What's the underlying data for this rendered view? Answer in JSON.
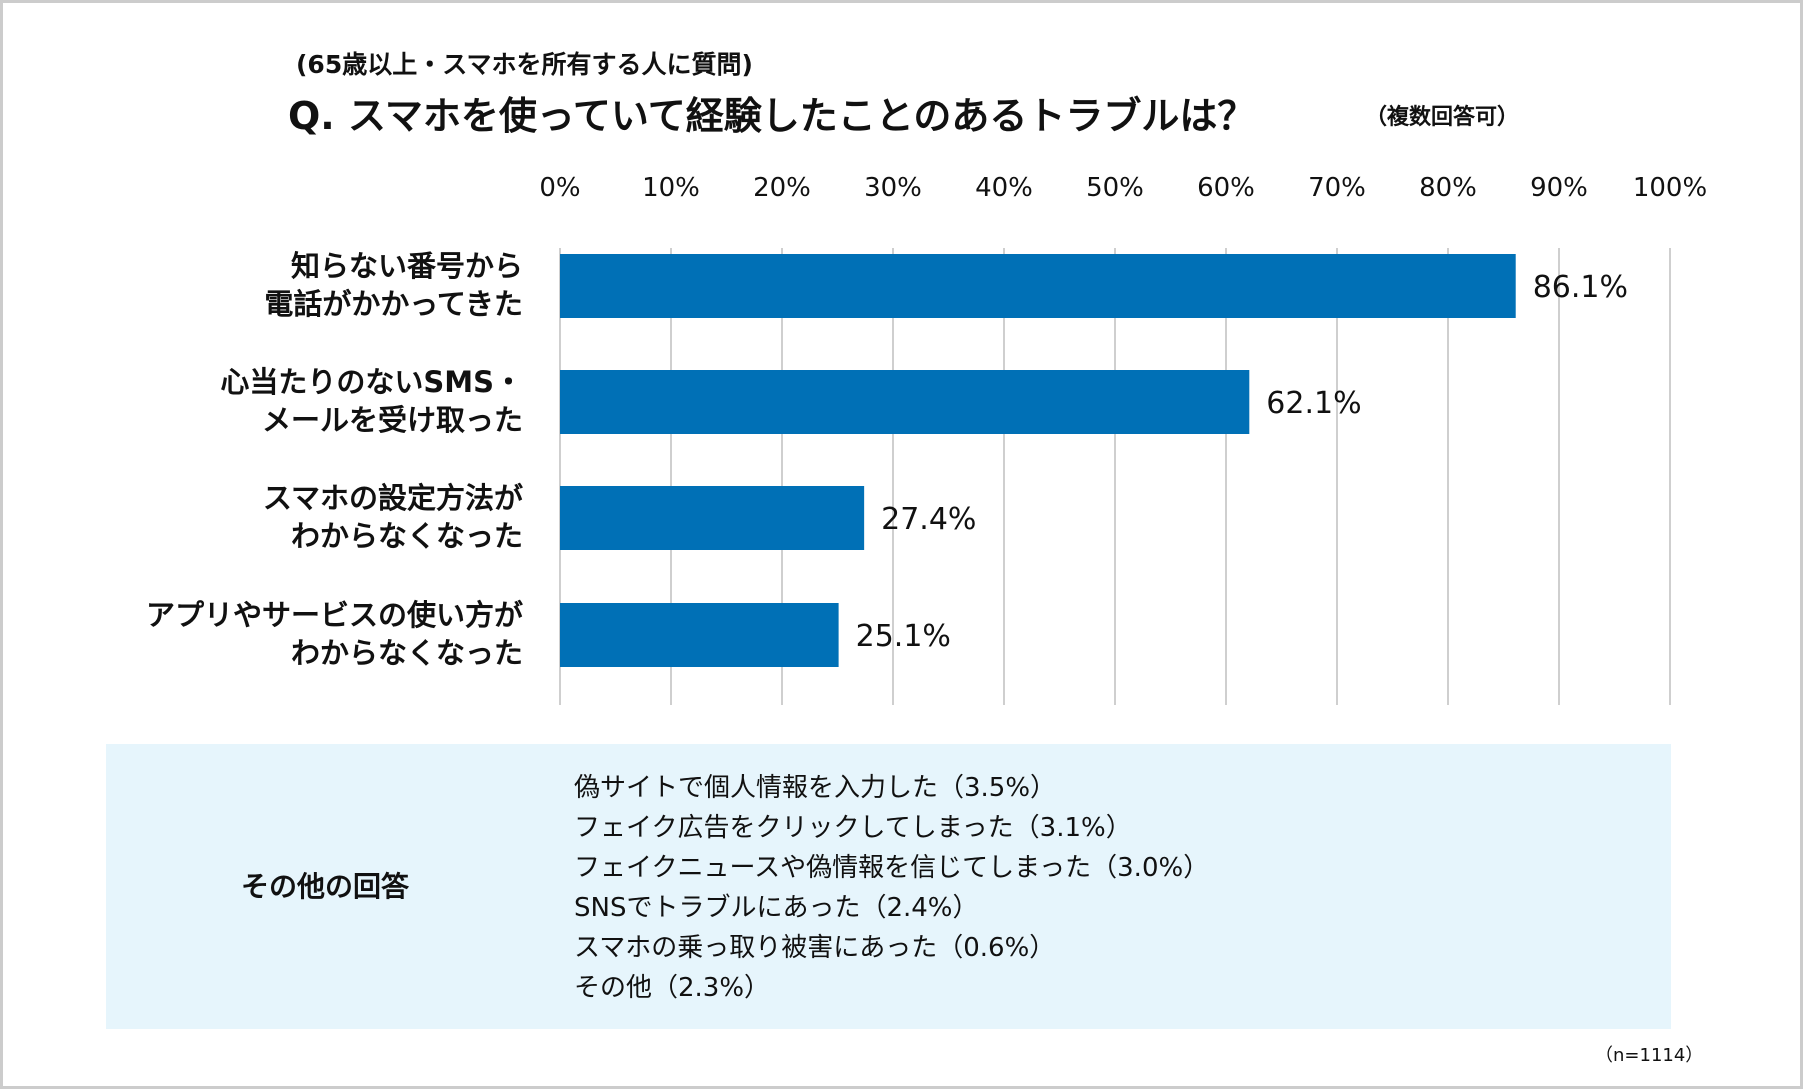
{
  "header": {
    "subtitle": "(65歳以上・スマホを所有する人に質問)",
    "title": "Q. スマホを使っていて経験したことのあるトラブルは？",
    "note": "（複数回答可）"
  },
  "chart_data": {
    "type": "bar",
    "orientation": "horizontal",
    "title": "Q. スマホを使っていて経験したことのあるトラブルは？",
    "xlim": [
      0,
      100
    ],
    "ticks": [
      0,
      10,
      20,
      30,
      40,
      50,
      60,
      70,
      80,
      90,
      100
    ],
    "tick_labels": [
      "0%",
      "10%",
      "20%",
      "30%",
      "40%",
      "50%",
      "60%",
      "70%",
      "80%",
      "90%",
      "100%"
    ],
    "grid": true,
    "bar_color": "#0070b6",
    "categories": [
      [
        "知らない番号から",
        "電話がかかってきた"
      ],
      [
        "心当たりのないSMS・",
        "メールを受け取った"
      ],
      [
        "スマホの設定方法が",
        "わからなくなった"
      ],
      [
        "アプリやサービスの使い方が",
        "わからなくなった"
      ]
    ],
    "values": [
      86.1,
      62.1,
      27.4,
      25.1
    ],
    "value_labels": [
      "86.1%",
      "62.1%",
      "27.4%",
      "25.1%"
    ]
  },
  "other_answers": {
    "heading": "その他の回答",
    "items": [
      "偽サイトで個人情報を入力した（3.5%）",
      "フェイク広告をクリックしてしまった（3.1%）",
      "フェイクニュースや偽情報を信じてしまった（3.0%）",
      "SNSでトラブルにあった（2.4%）",
      "スマホの乗っ取り被害にあった（0.6%）",
      "その他（2.3%）"
    ]
  },
  "sample_size": "（n=1114）"
}
